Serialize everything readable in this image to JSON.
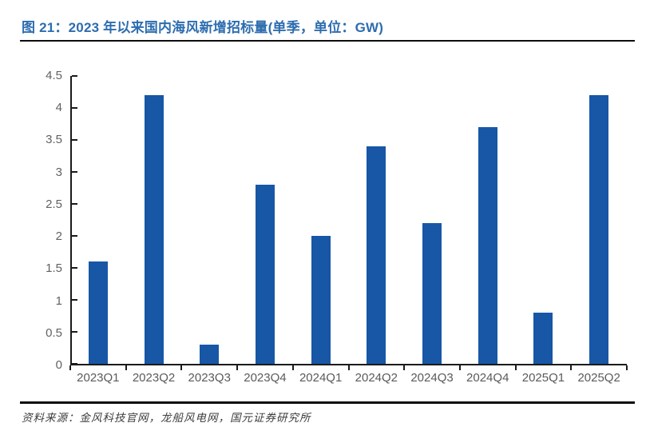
{
  "figure": {
    "title": "图 21：2023 年以来国内海风新增招标量(单季，单位：GW)",
    "source": "资料来源：金风科技官网，龙船风电网，国元证券研究所"
  },
  "chart_data": {
    "type": "bar",
    "title": "图 21：2023 年以来国内海风新增招标量(单季，单位：GW)",
    "categories": [
      "2023Q1",
      "2023Q2",
      "2023Q3",
      "2023Q4",
      "2024Q1",
      "2024Q2",
      "2024Q3",
      "2024Q4",
      "2025Q1",
      "2025Q2"
    ],
    "values": [
      1.6,
      4.2,
      0.3,
      2.8,
      2.0,
      3.4,
      2.2,
      3.7,
      0.8,
      4.2
    ],
    "series_name": "国内海风新增招标量",
    "unit": "GW",
    "xlabel": "",
    "ylabel": "",
    "ylim": [
      0,
      4.5
    ],
    "y_tick_labels": [
      "0",
      "0.5",
      "1",
      "1.5",
      "2",
      "2.5",
      "3",
      "3.5",
      "4",
      "4.5"
    ],
    "y_tick_values": [
      0,
      0.5,
      1,
      1.5,
      2,
      2.5,
      3,
      3.5,
      4,
      4.5
    ],
    "grid": false,
    "legend": "none",
    "colors": {
      "bar": "#1757A6",
      "title_text": "#2D6DAF",
      "axis_line": "#1a1a1a",
      "tick_label": "#5a5a5a",
      "rule": "#0d0d0d"
    }
  }
}
